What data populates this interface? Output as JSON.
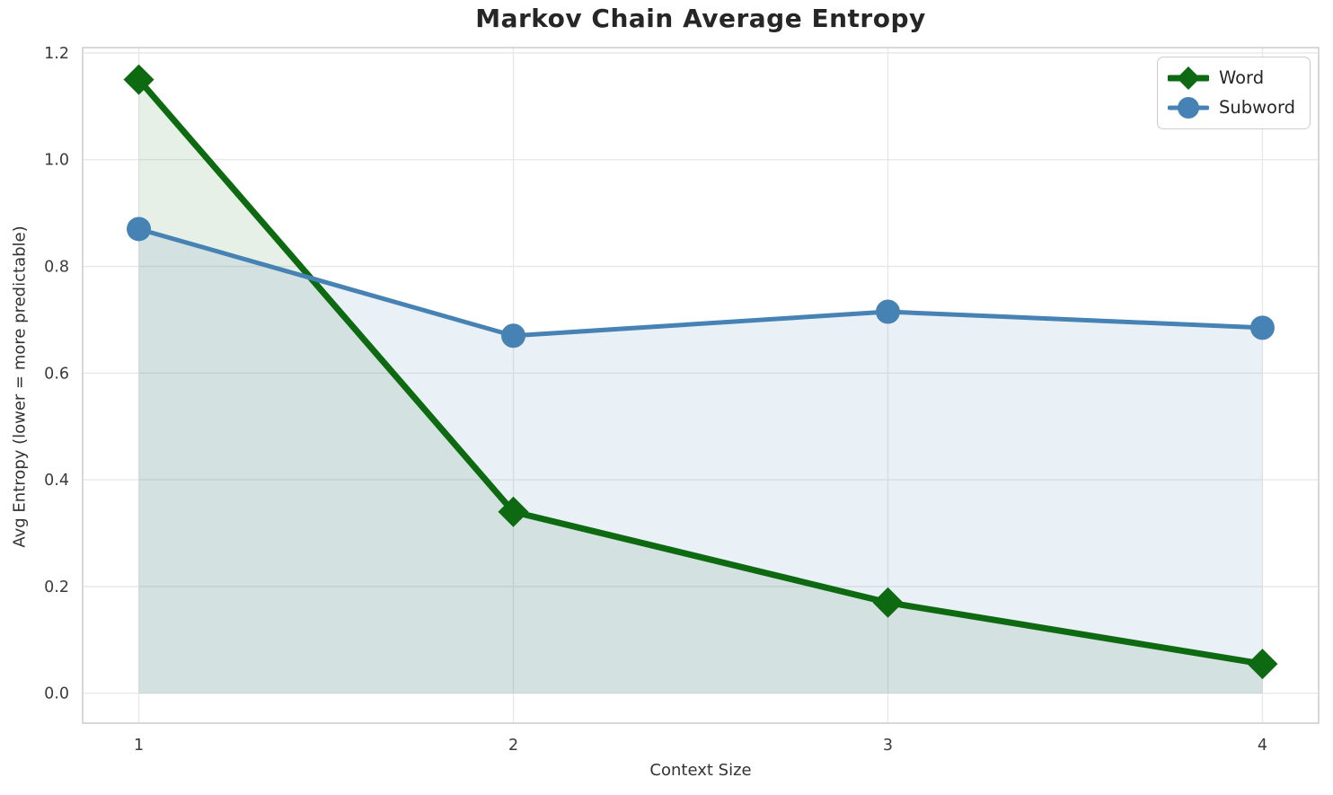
{
  "chart_data": {
    "type": "line",
    "title": "Markov Chain Average Entropy",
    "xlabel": "Context Size",
    "ylabel": "Avg Entropy (lower = more predictable)",
    "x": [
      1,
      2,
      3,
      4
    ],
    "series": [
      {
        "name": "Word",
        "values": [
          1.15,
          0.34,
          0.17,
          0.055
        ],
        "color": "#0d6a10",
        "marker": "diamond",
        "line_width": 7,
        "fill_to_zero": true,
        "fill_opacity": 0.1
      },
      {
        "name": "Subword",
        "values": [
          0.87,
          0.67,
          0.715,
          0.685
        ],
        "color": "#4682b4",
        "marker": "circle",
        "line_width": 5,
        "fill_to_zero": true,
        "fill_opacity": 0.12
      }
    ],
    "xticks": [
      1,
      2,
      3,
      4
    ],
    "yticks": [
      0.0,
      0.2,
      0.4,
      0.6,
      0.8,
      1.0,
      1.2
    ],
    "xlim": [
      0.85,
      4.15
    ],
    "ylim": [
      -0.056,
      1.21
    ],
    "grid": true,
    "grid_color": "#e7e7e7",
    "spine_color": "#cfcfcf",
    "tick_color": "#3b3b3b",
    "legend_position": "top-right"
  }
}
